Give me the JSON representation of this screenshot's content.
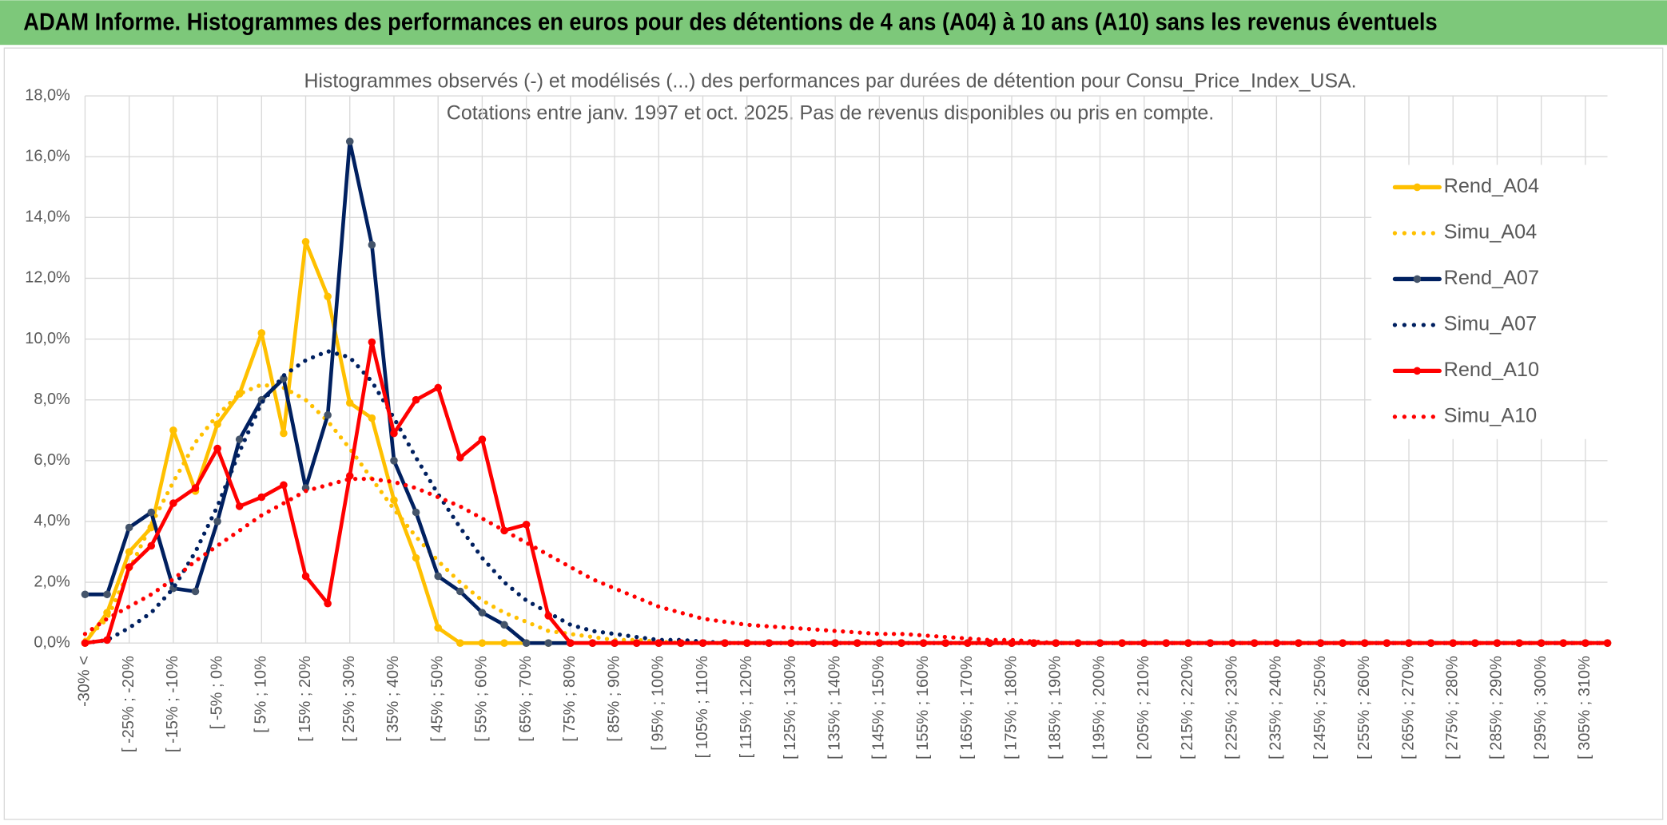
{
  "header": {
    "title": "ADAM Informe. Histogrammes des performances en euros pour des détentions de 4 ans (A04) à 10 ans (A10) sans les revenus éventuels"
  },
  "chart_data": {
    "type": "line",
    "title": "Histogrammes observés (-) et modélisés (...) des performances par durées de détention pour Consu_Price_Index_USA.",
    "subtitle": "Cotations entre janv. 1997 et oct. 2025. Pas de revenus disponibles ou pris en compte.",
    "categories": [
      "-30% <",
      null,
      "[ -25% ; -20%",
      null,
      "[ -15% ; -10%",
      null,
      "[ -5% ; 0%",
      null,
      "[ 5% ; 10%",
      null,
      "[ 15% ; 20%",
      null,
      "[ 25% ; 30%",
      null,
      "[ 35% ; 40%",
      null,
      "[ 45% ; 50%",
      null,
      "[ 55% ; 60%",
      null,
      "[ 65% ; 70%",
      null,
      "[ 75% ; 80%",
      null,
      "[ 85% ; 90%",
      null,
      "[ 95% ; 100%",
      null,
      "[ 105% ; 110%",
      null,
      "[ 115% ; 120%",
      null,
      "[ 125% ; 130%",
      null,
      "[ 135% ; 140%",
      null,
      "[ 145% ; 150%",
      null,
      "[ 155% ; 160%",
      null,
      "[ 165% ; 170%",
      null,
      "[ 175% ; 180%",
      null,
      "[ 185% ; 190%",
      null,
      "[ 195% ; 200%",
      null,
      "[ 205% ; 210%",
      null,
      "[ 215% ; 220%",
      null,
      "[ 225% ; 230%",
      null,
      "[ 235% ; 240%",
      null,
      "[ 245% ; 250%",
      null,
      "[ 255% ; 260%",
      null,
      "[ 265% ; 270%",
      null,
      "[ 275% ; 280%",
      null,
      "[ 285% ; 290%",
      null,
      "[ 295% ; 300%",
      null,
      "[ 305% ; 310%",
      null
    ],
    "series": [
      {
        "name": "Rend_A04",
        "color": "#FFC000",
        "style": "solid",
        "marker_color": "#FFC000",
        "values": [
          0,
          1.0,
          3.0,
          3.8,
          7.0,
          5.0,
          7.2,
          8.2,
          10.2,
          6.9,
          13.2,
          11.4,
          7.9,
          7.4,
          4.7,
          2.8,
          0.5,
          0,
          0,
          0,
          0,
          0,
          0,
          0,
          0,
          0,
          0,
          0,
          0,
          0,
          0,
          0,
          0,
          0,
          0,
          0,
          0,
          0,
          0,
          0,
          0,
          0,
          0,
          0,
          0,
          0,
          0,
          0,
          0,
          0,
          0,
          0,
          0,
          0,
          0,
          0,
          0,
          0,
          0,
          0,
          0,
          0,
          0,
          0,
          0,
          0,
          0,
          0,
          0,
          0
        ]
      },
      {
        "name": "Simu_A04",
        "color": "#FFC000",
        "style": "dotted",
        "values": [
          0.1,
          0.8,
          2.4,
          3.9,
          5.3,
          6.6,
          7.5,
          8.2,
          8.5,
          8.4,
          8.0,
          7.3,
          6.4,
          5.4,
          4.4,
          3.5,
          2.7,
          2.0,
          1.4,
          1.0,
          0.7,
          0.4,
          0.3,
          0.2,
          0.1,
          0.1,
          0.05,
          0,
          0,
          0,
          0,
          0,
          0,
          0,
          0,
          0,
          0,
          0,
          0,
          0,
          0,
          0,
          0,
          0,
          0,
          0,
          0,
          0,
          0,
          0,
          0,
          0,
          0,
          0,
          0,
          0,
          0,
          0,
          0,
          0,
          0,
          0,
          0,
          0,
          0,
          0,
          0,
          0,
          0,
          0
        ]
      },
      {
        "name": "Rend_A07",
        "color": "#002060",
        "style": "solid",
        "marker_color": "#44546A",
        "values": [
          1.6,
          1.6,
          3.8,
          4.3,
          1.8,
          1.7,
          4.0,
          6.7,
          8.0,
          8.7,
          5.1,
          7.5,
          16.5,
          13.1,
          6.0,
          4.3,
          2.2,
          1.7,
          1.0,
          0.6,
          0,
          0,
          0,
          0,
          0,
          0,
          0,
          0,
          0,
          0,
          0,
          0,
          0,
          0,
          0,
          0,
          0,
          0,
          0,
          0,
          0,
          0,
          0,
          0,
          0,
          0,
          0,
          0,
          0,
          0,
          0,
          0,
          0,
          0,
          0,
          0,
          0,
          0,
          0,
          0,
          0,
          0,
          0,
          0,
          0,
          0,
          0,
          0,
          0,
          0
        ]
      },
      {
        "name": "Simu_A07",
        "color": "#002060",
        "style": "dotted",
        "values": [
          0,
          0.1,
          0.5,
          1.0,
          1.8,
          3.0,
          4.5,
          6.3,
          7.9,
          8.8,
          9.3,
          9.6,
          9.4,
          8.6,
          7.4,
          6.1,
          4.9,
          3.8,
          2.8,
          2.0,
          1.4,
          1.0,
          0.6,
          0.4,
          0.3,
          0.2,
          0.1,
          0.1,
          0.05,
          0,
          0,
          0,
          0,
          0,
          0,
          0,
          0,
          0,
          0,
          0,
          0,
          0,
          0,
          0,
          0,
          0,
          0,
          0,
          0,
          0,
          0,
          0,
          0,
          0,
          0,
          0,
          0,
          0,
          0,
          0,
          0,
          0,
          0,
          0,
          0,
          0,
          0,
          0,
          0,
          0
        ]
      },
      {
        "name": "Rend_A10",
        "color": "#FF0000",
        "style": "solid",
        "marker_color": "#FF0000",
        "values": [
          0,
          0.1,
          2.5,
          3.2,
          4.6,
          5.1,
          6.4,
          4.5,
          4.8,
          5.2,
          2.2,
          1.3,
          5.5,
          9.9,
          6.9,
          8.0,
          8.4,
          6.1,
          6.7,
          3.7,
          3.9,
          0.9,
          0,
          0,
          0,
          0,
          0,
          0,
          0,
          0,
          0,
          0,
          0,
          0,
          0,
          0,
          0,
          0,
          0,
          0,
          0,
          0,
          0,
          0,
          0,
          0,
          0,
          0,
          0,
          0,
          0,
          0,
          0,
          0,
          0,
          0,
          0,
          0,
          0,
          0,
          0,
          0,
          0,
          0,
          0,
          0,
          0,
          0,
          0,
          0
        ]
      },
      {
        "name": "Simu_A10",
        "color": "#FF0000",
        "style": "dotted",
        "values": [
          0.3,
          0.8,
          1.2,
          1.6,
          2.1,
          2.7,
          3.2,
          3.7,
          4.2,
          4.6,
          5.0,
          5.2,
          5.4,
          5.4,
          5.3,
          5.1,
          4.8,
          4.5,
          4.1,
          3.7,
          3.3,
          2.9,
          2.5,
          2.1,
          1.8,
          1.5,
          1.2,
          1.0,
          0.8,
          0.7,
          0.6,
          0.55,
          0.5,
          0.45,
          0.4,
          0.35,
          0.3,
          0.3,
          0.25,
          0.2,
          0.15,
          0.1,
          0.1,
          0.05,
          0,
          0,
          0,
          0,
          0,
          0,
          0,
          0,
          0,
          0,
          0,
          0,
          0,
          0,
          0,
          0,
          0,
          0,
          0,
          0,
          0,
          0,
          0,
          0,
          0,
          0
        ]
      }
    ],
    "ylim": [
      0,
      18
    ],
    "yticks": [
      {
        "value": 0,
        "label": "0,0%"
      },
      {
        "value": 2,
        "label": "2,0%"
      },
      {
        "value": 4,
        "label": "4,0%"
      },
      {
        "value": 6,
        "label": "6,0%"
      },
      {
        "value": 8,
        "label": "8,0%"
      },
      {
        "value": 10,
        "label": "10,0%"
      },
      {
        "value": 12,
        "label": "12,0%"
      },
      {
        "value": 14,
        "label": "14,0%"
      },
      {
        "value": 16,
        "label": "16,0%"
      },
      {
        "value": 18,
        "label": "18,0%"
      }
    ],
    "grid": true,
    "legend": "upper right"
  }
}
